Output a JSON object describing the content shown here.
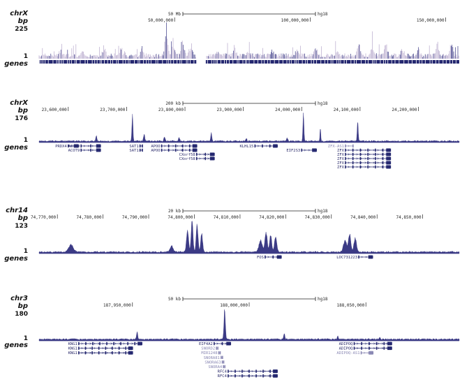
{
  "colors": {
    "signal": "#3b3a85",
    "signal_light": "#b7a9cc",
    "gene": "#252870",
    "gene_muted": "#8a88b4",
    "text": "#111111"
  },
  "chart_data": [
    {
      "type": "area",
      "chrom": "chrX",
      "units": "bp",
      "ymax_label": "225",
      "ymin_label": "1",
      "genes_label": "genes",
      "scale_label": "50 Mb",
      "assembly": "hg18",
      "xlim": [
        0,
        155000000
      ],
      "ticks": [
        {
          "label": "50,000,000",
          "pos": 50000000
        },
        {
          "label": "100,000,000",
          "pos": 100000000
        },
        {
          "label": "150,000,000",
          "pos": 150000000
        }
      ],
      "gap": [
        58000000,
        61500000
      ],
      "peaks": [
        {
          "x": 8000000,
          "h": 0.35
        },
        {
          "x": 16000000,
          "h": 0.25
        },
        {
          "x": 24000000,
          "h": 0.42
        },
        {
          "x": 30000000,
          "h": 0.3
        },
        {
          "x": 38000000,
          "h": 0.35
        },
        {
          "x": 47000000,
          "h": 0.88
        },
        {
          "x": 49500000,
          "h": 0.6
        },
        {
          "x": 53000000,
          "h": 0.7
        },
        {
          "x": 56000000,
          "h": 0.5
        },
        {
          "x": 66000000,
          "h": 0.3
        },
        {
          "x": 72000000,
          "h": 0.45
        },
        {
          "x": 77000000,
          "h": 0.35
        },
        {
          "x": 86000000,
          "h": 0.3
        },
        {
          "x": 95000000,
          "h": 0.35
        },
        {
          "x": 102000000,
          "h": 0.5
        },
        {
          "x": 110000000,
          "h": 0.3
        },
        {
          "x": 118000000,
          "h": 0.6
        },
        {
          "x": 123000000,
          "h": 0.45
        },
        {
          "x": 128000000,
          "h": 0.5
        },
        {
          "x": 134000000,
          "h": 0.4
        },
        {
          "x": 140000000,
          "h": 0.35
        },
        {
          "x": 147000000,
          "h": 0.55
        },
        {
          "x": 152000000,
          "h": 0.6
        }
      ],
      "genes": []
    },
    {
      "type": "area",
      "chrom": "chrX",
      "units": "bp",
      "ymax_label": "176",
      "ymin_label": "1",
      "genes_label": "genes",
      "scale_label": "200 kb",
      "assembly": "hg18",
      "xlim": [
        23550000,
        24270000
      ],
      "ticks": [
        {
          "label": "23,600,000",
          "pos": 23600000
        },
        {
          "label": "23,700,000",
          "pos": 23700000
        },
        {
          "label": "23,800,000",
          "pos": 23800000
        },
        {
          "label": "23,900,000",
          "pos": 23900000
        },
        {
          "label": "24,000,000",
          "pos": 24000000
        },
        {
          "label": "24,100,000",
          "pos": 24100000
        },
        {
          "label": "24,200,000",
          "pos": 24200000
        }
      ],
      "peaks": [
        {
          "x": 23648000,
          "h": 0.18,
          "w": 1200
        },
        {
          "x": 23710000,
          "h": 0.9,
          "w": 1200
        },
        {
          "x": 23730000,
          "h": 0.22,
          "w": 1500
        },
        {
          "x": 23765000,
          "h": 0.16,
          "w": 1500
        },
        {
          "x": 23790000,
          "h": 0.12,
          "w": 1500
        },
        {
          "x": 23845000,
          "h": 0.3,
          "w": 1200
        },
        {
          "x": 23905000,
          "h": 0.1,
          "w": 1500
        },
        {
          "x": 23975000,
          "h": 0.1,
          "w": 1500
        },
        {
          "x": 24003000,
          "h": 0.95,
          "w": 1200
        },
        {
          "x": 24032000,
          "h": 0.45,
          "w": 1000
        },
        {
          "x": 24096000,
          "h": 0.65,
          "w": 1200
        }
      ],
      "genes": [
        {
          "name": "PRDX4",
          "start": 23600000,
          "end": 23617000,
          "row": 0
        },
        {
          "name": "ACOT9",
          "start": 23622000,
          "end": 23655000,
          "row": 0,
          "label_side": "left"
        },
        {
          "name": "ACOT9",
          "start": 23622000,
          "end": 23655000,
          "row": 1,
          "label_side": "left"
        },
        {
          "name": "SAT1",
          "start": 23723000,
          "end": 23727000,
          "row": 0,
          "label_side": "left"
        },
        {
          "name": "SAT1",
          "start": 23723000,
          "end": 23727000,
          "row": 1,
          "label_side": "left"
        },
        {
          "name": "APOO",
          "start": 23760000,
          "end": 23820000,
          "row": 0,
          "label_side": "left"
        },
        {
          "name": "APOO",
          "start": 23760000,
          "end": 23820000,
          "row": 1,
          "label_side": "left"
        },
        {
          "name": "CXorf58",
          "start": 23820000,
          "end": 23850000,
          "row": 2,
          "label_side": "left"
        },
        {
          "name": "CXorf58",
          "start": 23820000,
          "end": 23850000,
          "row": 3,
          "label_side": "left"
        },
        {
          "name": "KLHL15",
          "start": 23920000,
          "end": 23958000,
          "row": 0,
          "label_side": "left"
        },
        {
          "name": "EIF2S3",
          "start": 24000000,
          "end": 24025000,
          "row": 1,
          "label_side": "left"
        },
        {
          "name": "ZFX-AS1",
          "start": 24075000,
          "end": 24088000,
          "row": 0,
          "label_side": "left",
          "muted": true
        },
        {
          "name": "ZFX",
          "start": 24075000,
          "end": 24152000,
          "row": 1,
          "label_side": "left"
        },
        {
          "name": "ZFX",
          "start": 24075000,
          "end": 24152000,
          "row": 2,
          "label_side": "left"
        },
        {
          "name": "ZFX",
          "start": 24075000,
          "end": 24152000,
          "row": 3,
          "label_side": "left"
        },
        {
          "name": "ZFX",
          "start": 24075000,
          "end": 24152000,
          "row": 4,
          "label_side": "left"
        },
        {
          "name": "ZFX",
          "start": 24075000,
          "end": 24152000,
          "row": 5,
          "label_side": "left"
        }
      ]
    },
    {
      "type": "area",
      "chrom": "chr14",
      "units": "bp",
      "ymax_label": "123",
      "ymin_label": "1",
      "genes_label": "genes",
      "scale_label": "20 kb",
      "assembly": "hg18",
      "xlim": [
        74766000,
        74858000
      ],
      "ticks": [
        {
          "label": "74,770,000",
          "pos": 74770000
        },
        {
          "label": "74,780,000",
          "pos": 74780000
        },
        {
          "label": "74,790,000",
          "pos": 74790000
        },
        {
          "label": "74,800,000",
          "pos": 74800000
        },
        {
          "label": "74,810,000",
          "pos": 74810000
        },
        {
          "label": "74,820,000",
          "pos": 74820000
        },
        {
          "label": "74,830,000",
          "pos": 74830000
        },
        {
          "label": "74,840,000",
          "pos": 74840000
        },
        {
          "label": "74,850,000",
          "pos": 74850000
        }
      ],
      "peaks": [
        {
          "x": 74773000,
          "h": 0.22,
          "w": 700
        },
        {
          "x": 74795000,
          "h": 0.18,
          "w": 500
        },
        {
          "x": 74798500,
          "h": 0.65,
          "w": 320
        },
        {
          "x": 74799500,
          "h": 0.95,
          "w": 280
        },
        {
          "x": 74800600,
          "h": 0.85,
          "w": 280
        },
        {
          "x": 74801600,
          "h": 0.55,
          "w": 300
        },
        {
          "x": 74814500,
          "h": 0.35,
          "w": 500
        },
        {
          "x": 74815700,
          "h": 0.62,
          "w": 350
        },
        {
          "x": 74816700,
          "h": 0.55,
          "w": 300
        },
        {
          "x": 74817800,
          "h": 0.45,
          "w": 350
        },
        {
          "x": 74833000,
          "h": 0.35,
          "w": 500
        },
        {
          "x": 74834000,
          "h": 0.55,
          "w": 350
        },
        {
          "x": 74835200,
          "h": 0.42,
          "w": 400
        }
      ],
      "genes": [
        {
          "name": "FOS",
          "start": 74815500,
          "end": 74819000,
          "row": 0,
          "label_side": "left"
        },
        {
          "name": "LOC731223",
          "start": 74836000,
          "end": 74839000,
          "row": 0,
          "label_side": "left"
        }
      ]
    },
    {
      "type": "area",
      "chrom": "chr3",
      "units": "bp",
      "ymax_label": "180",
      "ymin_label": "1",
      "genes_label": "genes",
      "scale_label": "50 kb",
      "assembly": "hg18",
      "xlim": [
        187910000,
        188090000
      ],
      "ticks": [
        {
          "label": "187,950,000",
          "pos": 187950000
        },
        {
          "label": "188,000,000",
          "pos": 188000000
        },
        {
          "label": "188,050,000",
          "pos": 188050000
        }
      ],
      "peaks": [
        {
          "x": 187952000,
          "h": 0.25,
          "w": 350
        },
        {
          "x": 187989500,
          "h": 0.95,
          "w": 400
        },
        {
          "x": 188015000,
          "h": 0.2,
          "w": 350
        },
        {
          "x": 188038000,
          "h": 0.1,
          "w": 300
        },
        {
          "x": 188056000,
          "h": 0.06,
          "w": 300
        }
      ],
      "genes": [
        {
          "name": "KNG1",
          "start": 187927000,
          "end": 187954000,
          "row": 0,
          "label_side": "left"
        },
        {
          "name": "KNG1",
          "start": 187927000,
          "end": 187950000,
          "row": 1,
          "label_side": "left"
        },
        {
          "name": "KNG1",
          "start": 187927000,
          "end": 187950000,
          "row": 2,
          "label_side": "left"
        },
        {
          "name": "EIF4A2",
          "start": 187985000,
          "end": 187992000,
          "row": 0,
          "label_side": "left"
        },
        {
          "name": "SNORD2",
          "start": 187986000,
          "end": 187986500,
          "row": 1,
          "label_side": "left",
          "muted": true
        },
        {
          "name": "MIR1248",
          "start": 187987000,
          "end": 187987500,
          "row": 2,
          "label_side": "left",
          "muted": true
        },
        {
          "name": "SNORA81",
          "start": 187988000,
          "end": 187988500,
          "row": 3,
          "label_side": "left",
          "muted": true
        },
        {
          "name": "SNORA63",
          "start": 187988500,
          "end": 187989000,
          "row": 4,
          "label_side": "left",
          "muted": true
        },
        {
          "name": "SNORA4",
          "start": 187989000,
          "end": 187989500,
          "row": 5,
          "label_side": "left",
          "muted": true
        },
        {
          "name": "RFC4",
          "start": 187991000,
          "end": 188012000,
          "row": 6,
          "label_side": "left"
        },
        {
          "name": "RFC4",
          "start": 187991000,
          "end": 188012000,
          "row": 7,
          "label_side": "left"
        },
        {
          "name": "ADIPOQ",
          "start": 188045000,
          "end": 188061000,
          "row": 0,
          "label_side": "left"
        },
        {
          "name": "ADIPOQ",
          "start": 188045000,
          "end": 188061000,
          "row": 1,
          "label_side": "left"
        },
        {
          "name": "ADIPOQ-AS1",
          "start": 188048000,
          "end": 188053000,
          "row": 2,
          "label_side": "left",
          "muted": true
        }
      ]
    }
  ]
}
